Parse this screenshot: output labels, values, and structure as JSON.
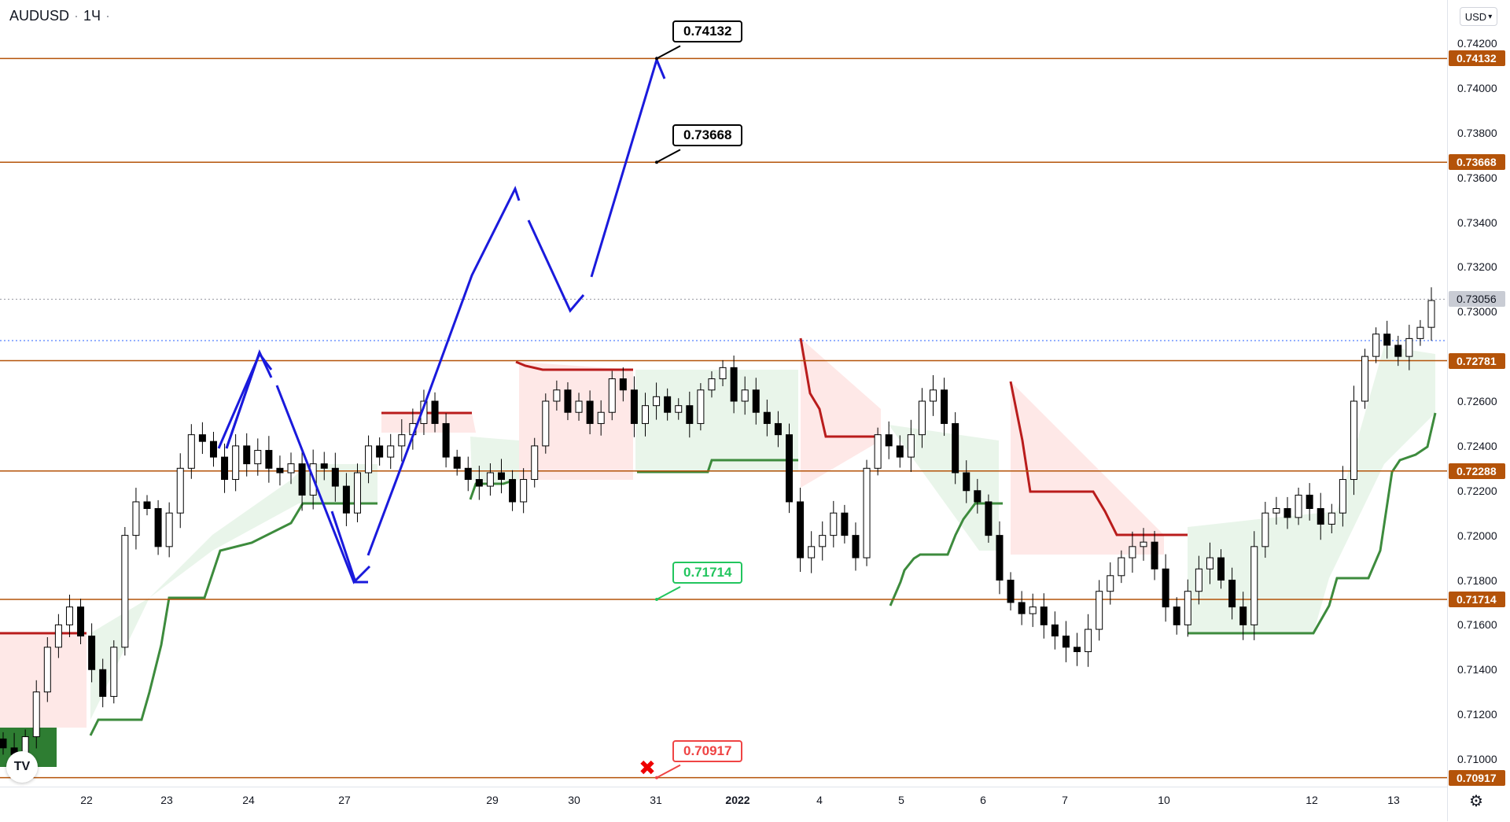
{
  "symbol": {
    "name": "AUDUSD",
    "interval": "1Ч",
    "sep": "·",
    "sep2": "·"
  },
  "currency": {
    "label": "USD",
    "chevron": "▾"
  },
  "price_ticks": [
    "0.74200",
    "0.74000",
    "0.73800",
    "0.73600",
    "0.73400",
    "0.73200",
    "0.73000",
    "0.72600",
    "0.72400",
    "0.72200",
    "0.72000",
    "0.71800",
    "0.71600",
    "0.71400",
    "0.71200",
    "0.71000"
  ],
  "levels": [
    {
      "label": "0.74132",
      "price": 0.74132,
      "color": "#b45309"
    },
    {
      "label": "0.73668",
      "price": 0.73668,
      "color": "#b45309"
    },
    {
      "label": "0.72781",
      "price": 0.72781,
      "color": "#b45309"
    },
    {
      "label": "0.72288",
      "price": 0.72288,
      "color": "#b45309"
    },
    {
      "label": "0.71714",
      "price": 0.71714,
      "color": "#b45309"
    },
    {
      "label": "0.70917",
      "price": 0.70917,
      "color": "#b45309"
    }
  ],
  "current_price": {
    "label": "0.73056",
    "price": 0.73056
  },
  "time_labels": [
    {
      "label": "22"
    },
    {
      "label": "23"
    },
    {
      "label": "24"
    },
    {
      "label": "27"
    },
    {
      "label": "29"
    },
    {
      "label": "30"
    },
    {
      "label": "31"
    },
    {
      "label": "2022",
      "bold": true
    },
    {
      "label": "4"
    },
    {
      "label": "5"
    },
    {
      "label": "6"
    },
    {
      "label": "7"
    },
    {
      "label": "10"
    },
    {
      "label": "12"
    },
    {
      "label": "13"
    }
  ],
  "callouts": [
    {
      "label": "0.74132",
      "price": 0.74132,
      "color": "#000000"
    },
    {
      "label": "0.73668",
      "price": 0.73668,
      "color": "#000000"
    },
    {
      "label": "0.71714",
      "price": 0.71714,
      "color": "#22c55e"
    },
    {
      "label": "0.70917",
      "price": 0.70917,
      "color": "#ef4444"
    }
  ],
  "logo": {
    "text": "TV"
  },
  "icons": {
    "settings": "gear-icon",
    "stop": "x-mark-icon"
  },
  "colors": {
    "up": "#ffffff",
    "down": "#000000",
    "level": "#b45309",
    "projection": "#1a1adc",
    "supertrend_up": "#3d8b3d",
    "supertrend_down": "#b91c1c"
  },
  "chart_data": {
    "type": "candlestick",
    "ylim": [
      0.7082,
      0.743
    ],
    "close_path": [
      0.7105,
      0.7102,
      0.711,
      0.713,
      0.715,
      0.716,
      0.7168,
      0.7155,
      0.714,
      0.7128,
      0.715,
      0.72,
      0.7215,
      0.7212,
      0.7195,
      0.721,
      0.723,
      0.7245,
      0.7242,
      0.7235,
      0.7225,
      0.724,
      0.7232,
      0.7238,
      0.723,
      0.7228,
      0.7232,
      0.7218,
      0.7232,
      0.723,
      0.7222,
      0.721,
      0.7228,
      0.724,
      0.7235,
      0.724,
      0.7245,
      0.725,
      0.726,
      0.725,
      0.7235,
      0.723,
      0.7225,
      0.7222,
      0.7228,
      0.7225,
      0.7215,
      0.7225,
      0.724,
      0.726,
      0.7265,
      0.7255,
      0.726,
      0.725,
      0.7255,
      0.727,
      0.7265,
      0.725,
      0.7258,
      0.7262,
      0.7255,
      0.7258,
      0.725,
      0.7265,
      0.727,
      0.7275,
      0.726,
      0.7265,
      0.7255,
      0.725,
      0.7245,
      0.7215,
      0.719,
      0.7195,
      0.72,
      0.721,
      0.72,
      0.719,
      0.723,
      0.7245,
      0.724,
      0.7235,
      0.7245,
      0.726,
      0.7265,
      0.725,
      0.7228,
      0.722,
      0.7215,
      0.72,
      0.718,
      0.717,
      0.7165,
      0.7168,
      0.716,
      0.7155,
      0.715,
      0.7148,
      0.7158,
      0.7175,
      0.7182,
      0.719,
      0.7195,
      0.7197,
      0.7185,
      0.7168,
      0.716,
      0.7175,
      0.7185,
      0.719,
      0.718,
      0.7168,
      0.716,
      0.7195,
      0.721,
      0.7212,
      0.7208,
      0.7218,
      0.7212,
      0.7205,
      0.721,
      0.7225,
      0.726,
      0.728,
      0.729,
      0.7285,
      0.728,
      0.7288,
      0.7293,
      0.7305
    ]
  }
}
